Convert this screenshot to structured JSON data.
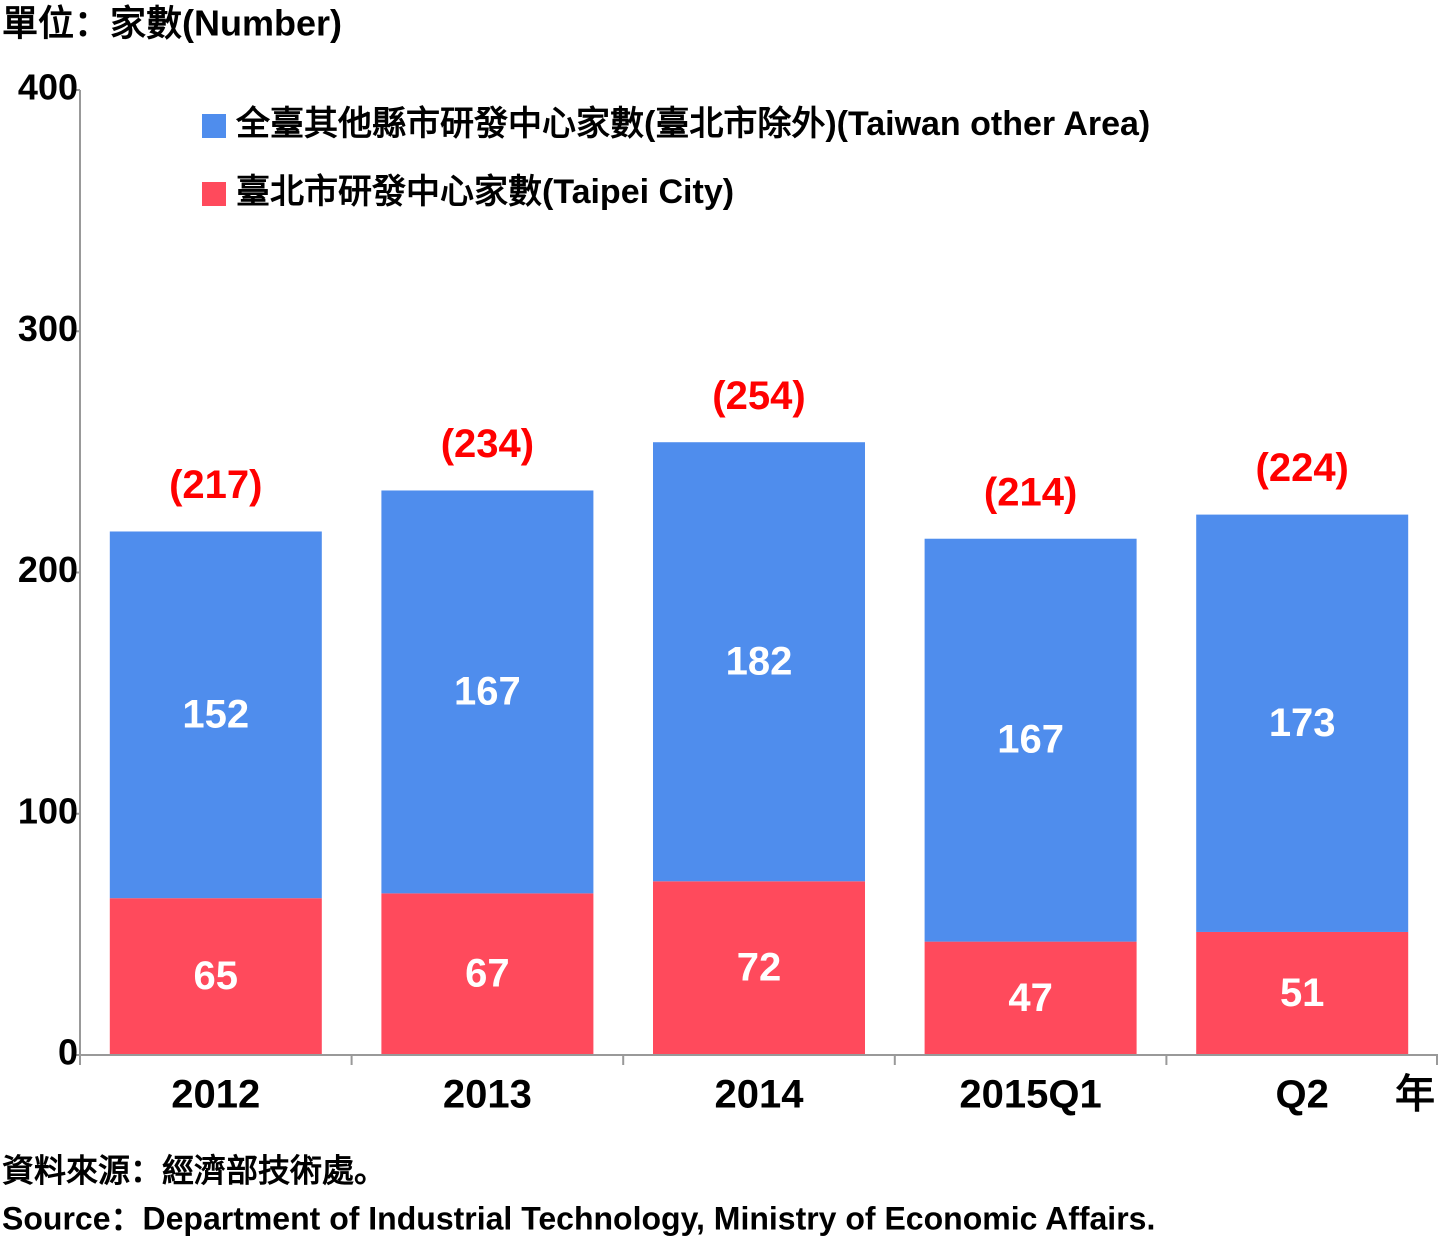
{
  "chart_data": {
    "type": "stacked_bar",
    "unit_label": "單位：家數(Number)",
    "x_unit_label": "年",
    "categories": [
      "2012",
      "2013",
      "2014",
      "2015Q1",
      "Q2"
    ],
    "series": [
      {
        "name": "全臺其他縣市研發中心家數(臺北市除外)(Taiwan other Area)",
        "color": "#4f8ded",
        "values": [
          152,
          167,
          182,
          167,
          173
        ]
      },
      {
        "name": "臺北市研發中心家數(Taipei City)",
        "color": "#ff4a5c",
        "values": [
          65,
          67,
          72,
          47,
          51
        ]
      }
    ],
    "totals": {
      "color": "#ff0000",
      "values": [
        217,
        234,
        254,
        214,
        224
      ],
      "value_labels": [
        "(217)",
        "(234)",
        "(254)",
        "(214)",
        "(224)"
      ]
    },
    "ylim": [
      0,
      400
    ],
    "yticks": [
      0,
      100,
      200,
      300,
      400
    ],
    "source": [
      "資料來源：經濟部技術處。",
      "Source：Department of Industrial Technology, Ministry of Economic Affairs."
    ]
  }
}
